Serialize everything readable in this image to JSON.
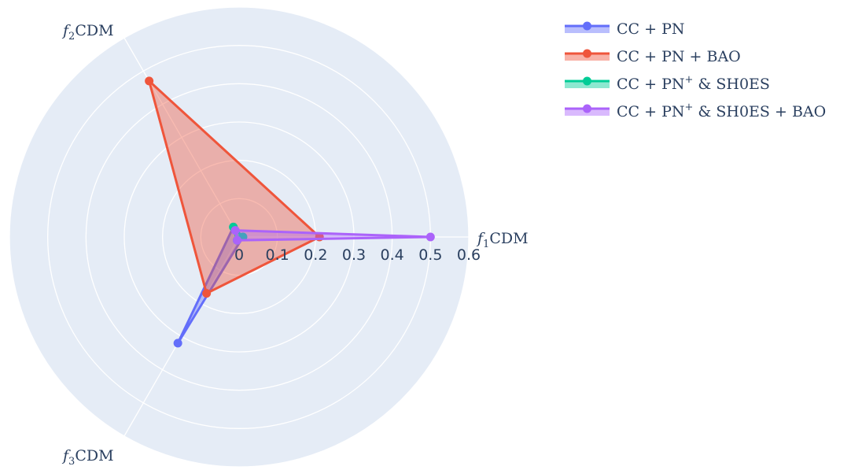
{
  "chart_data": {
    "type": "radar",
    "axes": [
      {
        "name": "f1",
        "label": "CDM",
        "sub": "1"
      },
      {
        "name": "f2",
        "label": "CDM",
        "sub": "2"
      },
      {
        "name": "f3",
        "label": "CDM",
        "sub": "3"
      }
    ],
    "radial_ticks": [
      "0",
      "0.1",
      "0.2",
      "0.3",
      "0.4",
      "0.5",
      "0.6"
    ],
    "rlim": [
      0,
      0.6
    ],
    "grid": true,
    "legend_position": "top-right",
    "series": [
      {
        "name": "CC + PN",
        "sup": "",
        "suffix": "",
        "color": "#636efa",
        "values": [
          0.01,
          0.03,
          0.32
        ]
      },
      {
        "name": "CC + PN + BAO",
        "sup": "",
        "suffix": "",
        "color": "#ef553b",
        "values": [
          0.21,
          0.47,
          0.17
        ]
      },
      {
        "name": "CC + PN",
        "sup": "+",
        "suffix": " & SH0ES",
        "color": "#00cc96",
        "values": [
          0.01,
          0.03,
          0.01
        ]
      },
      {
        "name": "CC + PN",
        "sup": "+",
        "suffix": " & SH0ES + BAO",
        "color": "#ab63fa",
        "values": [
          0.5,
          0.02,
          0.01
        ]
      }
    ]
  }
}
